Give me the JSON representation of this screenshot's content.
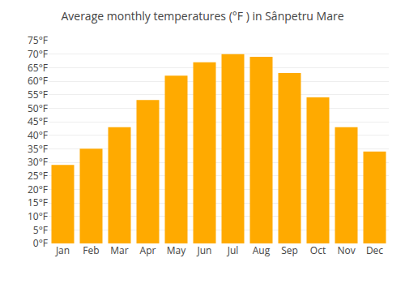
{
  "chart_data": {
    "type": "bar",
    "title": "Average monthly temperatures (°F ) in Sânpetru Mare",
    "categories": [
      "Jan",
      "Feb",
      "Mar",
      "Apr",
      "May",
      "Jun",
      "Jul",
      "Aug",
      "Sep",
      "Oct",
      "Nov",
      "Dec"
    ],
    "values": [
      29,
      35,
      43,
      53,
      62,
      67,
      70,
      69,
      63,
      54,
      43,
      34
    ],
    "color": "#FFAA00",
    "ylim": [
      0,
      75
    ],
    "yticks": [
      {
        "value": 0,
        "label": "0°F"
      },
      {
        "value": 5,
        "label": "5°F"
      },
      {
        "value": 10,
        "label": "10°F"
      },
      {
        "value": 15,
        "label": "15°F"
      },
      {
        "value": 20,
        "label": "20°F"
      },
      {
        "value": 25,
        "label": "25°F"
      },
      {
        "value": 30,
        "label": "30°F"
      },
      {
        "value": 35,
        "label": "35°F"
      },
      {
        "value": 40,
        "label": "40°F"
      },
      {
        "value": 45,
        "label": "45°F"
      },
      {
        "value": 50,
        "label": "50°F"
      },
      {
        "value": 55,
        "label": "55°F"
      },
      {
        "value": 60,
        "label": "60°F"
      },
      {
        "value": 65,
        "label": "65°F"
      },
      {
        "value": 70,
        "label": "70°F"
      },
      {
        "value": 75,
        "label": "75°F"
      }
    ],
    "grid": true
  }
}
